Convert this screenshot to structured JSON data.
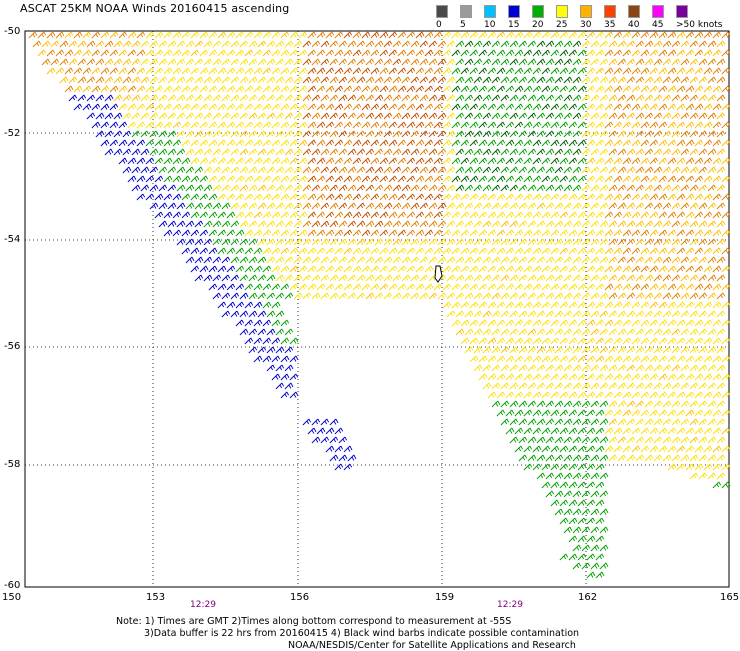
{
  "title": "ASCAT 25KM NOAA Winds 20160415 ascending",
  "colorbar": {
    "labels": [
      "0",
      "5",
      "10",
      "15",
      "20",
      "25",
      "30",
      "35",
      "40",
      "45",
      ">50 knots"
    ],
    "colors": [
      "#4a4a4a",
      "#9a9a9a",
      "#00c0ff",
      "#0000d0",
      "#00b000",
      "#ffff00",
      "#ffb000",
      "#ff4000",
      "#8b4513",
      "#ff00ff",
      "#7b00a0"
    ]
  },
  "axes": {
    "x_ticks": [
      "150",
      "153",
      "156",
      "159",
      "162",
      "165"
    ],
    "y_ticks": [
      "-50",
      "-52",
      "-54",
      "-56",
      "-58",
      "-60"
    ]
  },
  "times": [
    "12:29",
    "12:29"
  ],
  "note": {
    "line1": "Note: 1) Times are GMT 2)Times along bottom correspond to measurement at -55S",
    "line2": "3)Data buffer is 22 hrs from 20160415 4) Black wind barbs indicate possible contamination",
    "line3": "NOAA/NESDIS/Center for Satellite Applications and Research"
  },
  "wind_colors": {
    "blue": "#0000c8",
    "green": "#00a000",
    "dark_green": "#006000",
    "yellow": "#ffe000",
    "light_orange": "#ffc000",
    "orange": "#e08000",
    "dark_orange": "#c05000",
    "black": "#000000"
  }
}
